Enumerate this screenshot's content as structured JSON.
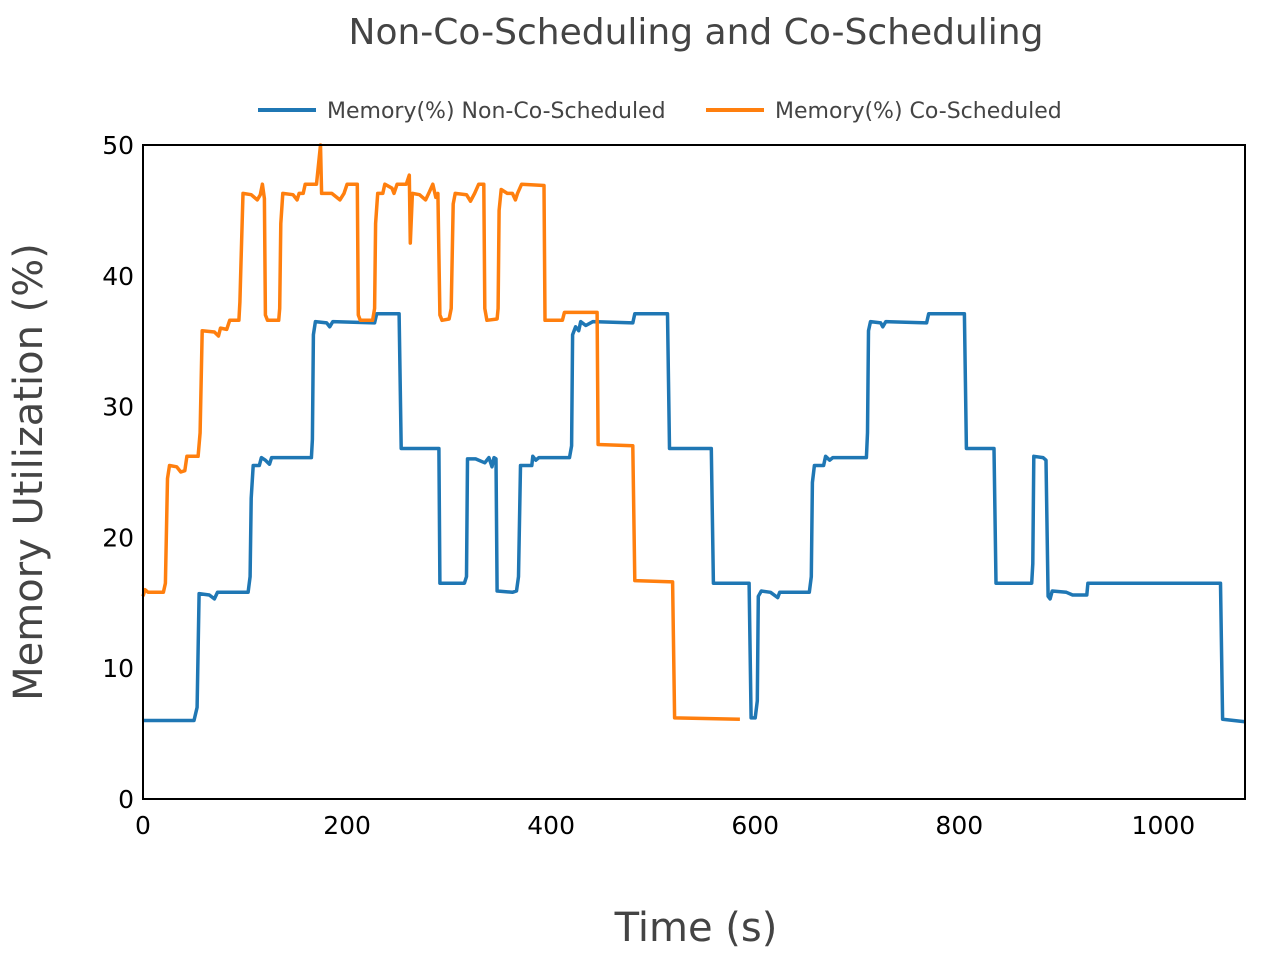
{
  "chart_data": {
    "type": "line",
    "title": "Non-Co-Scheduling and Co-Scheduling",
    "xlabel": "Time (s)",
    "ylabel": "Memory Utilization (%)",
    "xlim": [
      0,
      1080
    ],
    "ylim": [
      0,
      50
    ],
    "xticks": [
      0,
      200,
      400,
      600,
      800,
      1000
    ],
    "yticks": [
      0,
      10,
      20,
      30,
      40,
      50
    ],
    "grid": false,
    "legend_position": "top-center",
    "series": [
      {
        "name": "Memory(%) Non-Co-Scheduled",
        "color": "#1f77b4",
        "points": [
          [
            0,
            6
          ],
          [
            50,
            6
          ],
          [
            53,
            7
          ],
          [
            55,
            15.7
          ],
          [
            65,
            15.6
          ],
          [
            70,
            15.3
          ],
          [
            73,
            15.8
          ],
          [
            103,
            15.8
          ],
          [
            105,
            17
          ],
          [
            106,
            23
          ],
          [
            108,
            25.5
          ],
          [
            114,
            25.5
          ],
          [
            116,
            26.1
          ],
          [
            120,
            25.9
          ],
          [
            124,
            25.6
          ],
          [
            126,
            26.1
          ],
          [
            165,
            26.1
          ],
          [
            166,
            27.5
          ],
          [
            167,
            35.5
          ],
          [
            169,
            36.5
          ],
          [
            180,
            36.4
          ],
          [
            183,
            36.1
          ],
          [
            186,
            36.5
          ],
          [
            227,
            36.4
          ],
          [
            229,
            37.1
          ],
          [
            251,
            37.1
          ],
          [
            253,
            26.8
          ],
          [
            290,
            26.8
          ],
          [
            291,
            16.5
          ],
          [
            315,
            16.5
          ],
          [
            317,
            17
          ],
          [
            318,
            26
          ],
          [
            326,
            26
          ],
          [
            335,
            25.7
          ],
          [
            339,
            26.1
          ],
          [
            342,
            25.4
          ],
          [
            344,
            26.1
          ],
          [
            346,
            26
          ],
          [
            347,
            15.9
          ],
          [
            362,
            15.8
          ],
          [
            366,
            15.9
          ],
          [
            368,
            17
          ],
          [
            370,
            25.5
          ],
          [
            381,
            25.5
          ],
          [
            382,
            26.2
          ],
          [
            385,
            25.9
          ],
          [
            388,
            26.1
          ],
          [
            418,
            26.1
          ],
          [
            420,
            27
          ],
          [
            421,
            35.5
          ],
          [
            424,
            36.1
          ],
          [
            427,
            35.8
          ],
          [
            429,
            36.5
          ],
          [
            434,
            36.2
          ],
          [
            441,
            36.5
          ],
          [
            480,
            36.4
          ],
          [
            482,
            37.1
          ],
          [
            514,
            37.1
          ],
          [
            516,
            26.8
          ],
          [
            557,
            26.8
          ],
          [
            559,
            16.5
          ],
          [
            594,
            16.5
          ],
          [
            596,
            6.2
          ],
          [
            600,
            6.2
          ],
          [
            602,
            7.5
          ],
          [
            603,
            15.5
          ],
          [
            606,
            15.9
          ],
          [
            615,
            15.8
          ],
          [
            622,
            15.4
          ],
          [
            624,
            15.8
          ],
          [
            653,
            15.8
          ],
          [
            655,
            17
          ],
          [
            656,
            24.2
          ],
          [
            658,
            25.5
          ],
          [
            667,
            25.5
          ],
          [
            669,
            26.2
          ],
          [
            673,
            25.9
          ],
          [
            676,
            26.1
          ],
          [
            709,
            26.1
          ],
          [
            710,
            28
          ],
          [
            711,
            35.8
          ],
          [
            713,
            36.5
          ],
          [
            723,
            36.4
          ],
          [
            725,
            36.1
          ],
          [
            728,
            36.5
          ],
          [
            768,
            36.4
          ],
          [
            770,
            37.1
          ],
          [
            805,
            37.1
          ],
          [
            807,
            26.8
          ],
          [
            834,
            26.8
          ],
          [
            836,
            16.5
          ],
          [
            871,
            16.5
          ],
          [
            872,
            18
          ],
          [
            873,
            26.2
          ],
          [
            882,
            26.1
          ],
          [
            885,
            25.9
          ],
          [
            887,
            15.5
          ],
          [
            889,
            15.3
          ],
          [
            891,
            15.9
          ],
          [
            905,
            15.8
          ],
          [
            911,
            15.6
          ],
          [
            925,
            15.6
          ],
          [
            926,
            16.5
          ],
          [
            1056,
            16.5
          ],
          [
            1058,
            6.1
          ],
          [
            1080,
            5.9
          ]
        ]
      },
      {
        "name": "Memory(%) Co-Scheduled",
        "color": "#ff7f0e",
        "points": [
          [
            0,
            15.5
          ],
          [
            2,
            16
          ],
          [
            5,
            15.8
          ],
          [
            20,
            15.8
          ],
          [
            22,
            16.5
          ],
          [
            24,
            24.5
          ],
          [
            26,
            25.5
          ],
          [
            33,
            25.4
          ],
          [
            37,
            25
          ],
          [
            41,
            25.1
          ],
          [
            43,
            26.2
          ],
          [
            54,
            26.2
          ],
          [
            56,
            28
          ],
          [
            58,
            35.8
          ],
          [
            70,
            35.7
          ],
          [
            74,
            35.4
          ],
          [
            76,
            36
          ],
          [
            82,
            35.9
          ],
          [
            85,
            36.6
          ],
          [
            94,
            36.6
          ],
          [
            95,
            38
          ],
          [
            96,
            41
          ],
          [
            98,
            46.3
          ],
          [
            106,
            46.2
          ],
          [
            112,
            45.8
          ],
          [
            115,
            46.2
          ],
          [
            117,
            47
          ],
          [
            119,
            45.9
          ],
          [
            120,
            37
          ],
          [
            122,
            36.6
          ],
          [
            133,
            36.6
          ],
          [
            134,
            37.5
          ],
          [
            135,
            44
          ],
          [
            137,
            46.3
          ],
          [
            147,
            46.2
          ],
          [
            151,
            45.8
          ],
          [
            153,
            46.3
          ],
          [
            157,
            46.3
          ],
          [
            159,
            47
          ],
          [
            170,
            47
          ],
          [
            172,
            48.5
          ],
          [
            174,
            50
          ],
          [
            175,
            46.3
          ],
          [
            185,
            46.3
          ],
          [
            193,
            45.8
          ],
          [
            197,
            46.3
          ],
          [
            200,
            47
          ],
          [
            210,
            47
          ],
          [
            211,
            37
          ],
          [
            213,
            36.6
          ],
          [
            225,
            36.6
          ],
          [
            227,
            37.5
          ],
          [
            228,
            44
          ],
          [
            230,
            46.3
          ],
          [
            235,
            46.3
          ],
          [
            237,
            47
          ],
          [
            244,
            46.7
          ],
          [
            246,
            46.3
          ],
          [
            249,
            47
          ],
          [
            258,
            47
          ],
          [
            261,
            47.7
          ],
          [
            262,
            42.5
          ],
          [
            264,
            46.3
          ],
          [
            271,
            46.2
          ],
          [
            277,
            45.8
          ],
          [
            280,
            46.3
          ],
          [
            284,
            47
          ],
          [
            287,
            46
          ],
          [
            289,
            46.3
          ],
          [
            291,
            37
          ],
          [
            293,
            36.6
          ],
          [
            300,
            36.7
          ],
          [
            302,
            37.5
          ],
          [
            304,
            45.5
          ],
          [
            306,
            46.3
          ],
          [
            317,
            46.2
          ],
          [
            321,
            45.7
          ],
          [
            325,
            46.3
          ],
          [
            329,
            47
          ],
          [
            334,
            47
          ],
          [
            335,
            37.5
          ],
          [
            337,
            36.6
          ],
          [
            347,
            36.7
          ],
          [
            348,
            37.5
          ],
          [
            349,
            45
          ],
          [
            351,
            46.6
          ],
          [
            357,
            46.3
          ],
          [
            362,
            46.3
          ],
          [
            365,
            45.8
          ],
          [
            367,
            46.3
          ],
          [
            371,
            47
          ],
          [
            393,
            46.9
          ],
          [
            394,
            36.6
          ],
          [
            411,
            36.6
          ],
          [
            413,
            37.2
          ],
          [
            445,
            37.2
          ],
          [
            446,
            27.1
          ],
          [
            480,
            27
          ],
          [
            482,
            16.7
          ],
          [
            519,
            16.6
          ],
          [
            521,
            6.2
          ],
          [
            585,
            6.1
          ]
        ]
      }
    ]
  }
}
